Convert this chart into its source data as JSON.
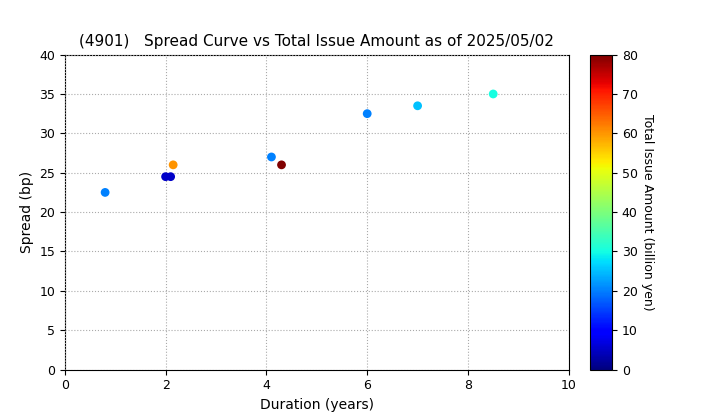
{
  "title": "(4901)   Spread Curve vs Total Issue Amount as of 2025/05/02",
  "xlabel": "Duration (years)",
  "ylabel": "Spread (bp)",
  "colorbar_label": "Total Issue Amount (billion yen)",
  "xlim": [
    0,
    10
  ],
  "ylim": [
    0,
    40
  ],
  "colorbar_min": 0,
  "colorbar_max": 80,
  "points": [
    {
      "duration": 0.8,
      "spread": 22.5,
      "amount": 20
    },
    {
      "duration": 2.0,
      "spread": 24.5,
      "amount": 5
    },
    {
      "duration": 2.1,
      "spread": 24.5,
      "amount": 5
    },
    {
      "duration": 2.15,
      "spread": 26.0,
      "amount": 60
    },
    {
      "duration": 4.1,
      "spread": 27.0,
      "amount": 20
    },
    {
      "duration": 4.3,
      "spread": 26.0,
      "amount": 80
    },
    {
      "duration": 6.0,
      "spread": 32.5,
      "amount": 20
    },
    {
      "duration": 7.0,
      "spread": 33.5,
      "amount": 25
    },
    {
      "duration": 8.5,
      "spread": 35.0,
      "amount": 30
    }
  ],
  "background_color": "#ffffff",
  "grid_color": "#aaaaaa",
  "title_fontsize": 11,
  "axis_fontsize": 10,
  "tick_fontsize": 9,
  "colorbar_tick_fontsize": 9,
  "colorbar_label_fontsize": 9,
  "marker_size": 40
}
